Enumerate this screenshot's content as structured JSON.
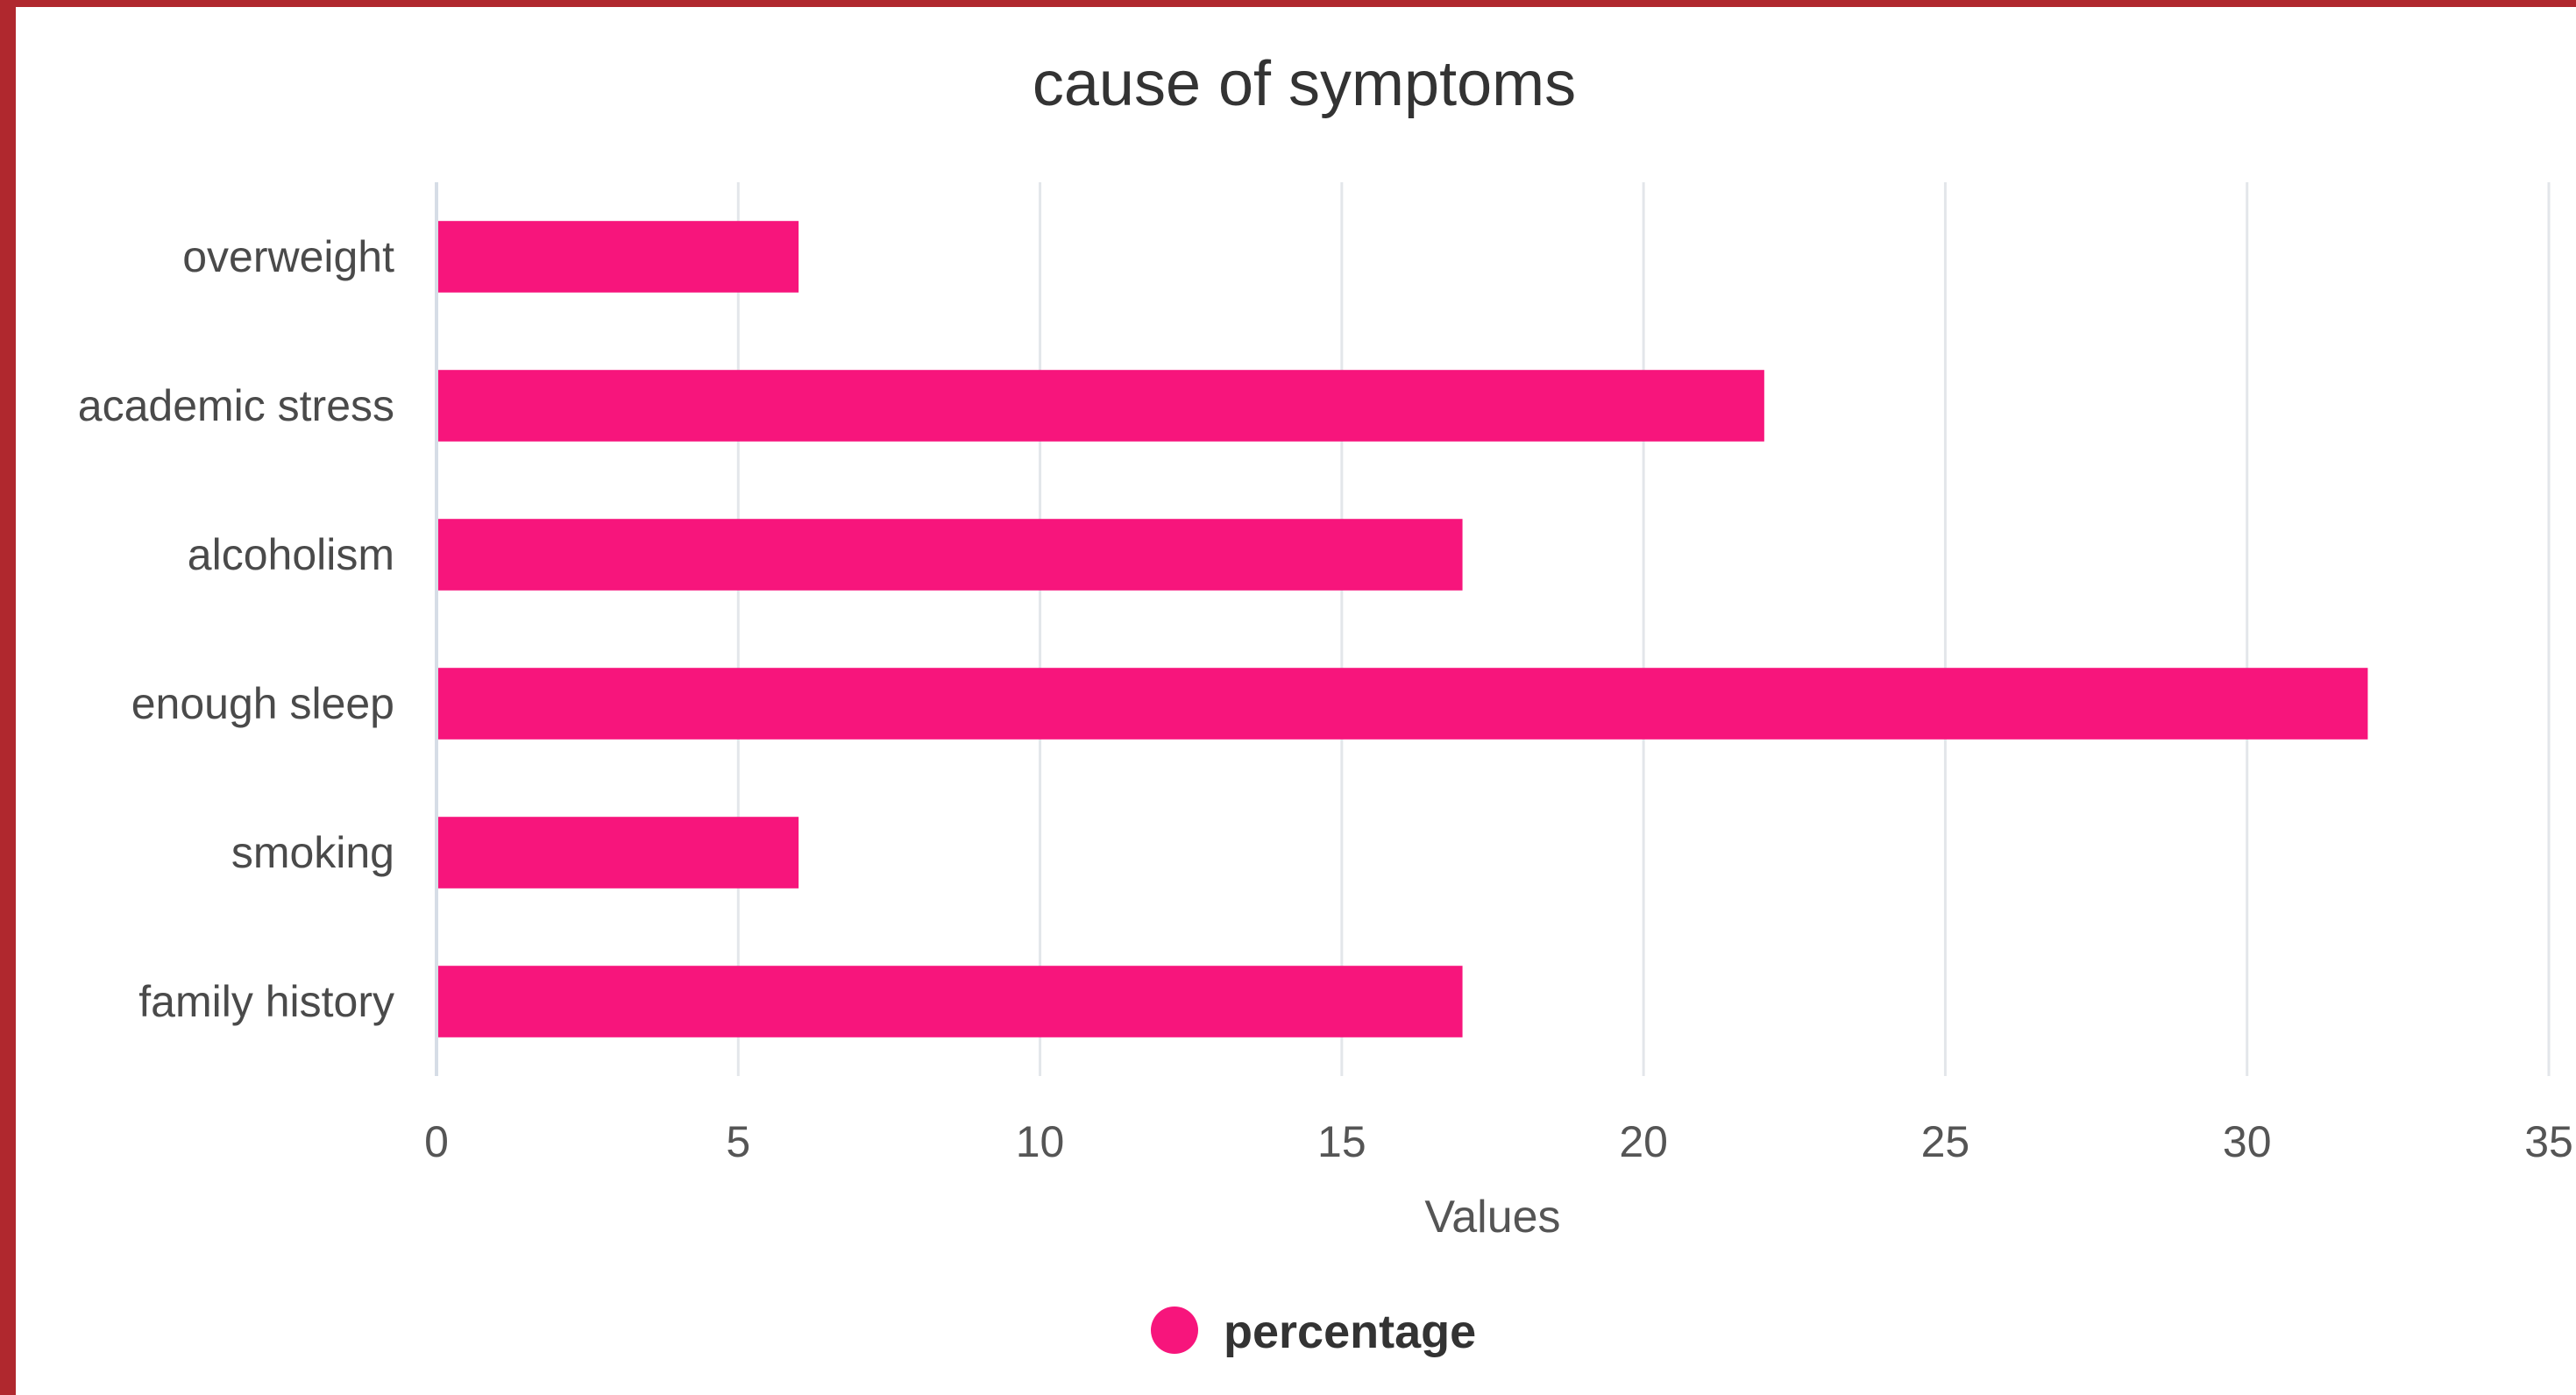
{
  "chart_data": {
    "type": "bar",
    "orientation": "horizontal",
    "title": "cause of symptoms",
    "categories": [
      "overweight",
      "academic stress",
      "alcoholism",
      "enough sleep",
      "smoking",
      "family history"
    ],
    "series": [
      {
        "name": "percentage",
        "values": [
          6,
          22,
          17,
          32,
          6,
          17
        ]
      }
    ],
    "xlabel": "Values",
    "ylabel": "",
    "xlim": [
      0,
      35
    ],
    "xticks": [
      0,
      5,
      10,
      15,
      20,
      25,
      30,
      35
    ],
    "grid": true,
    "legend_position": "bottom",
    "colors": {
      "bar": "#f7157c",
      "frame": "#b0282e"
    }
  }
}
